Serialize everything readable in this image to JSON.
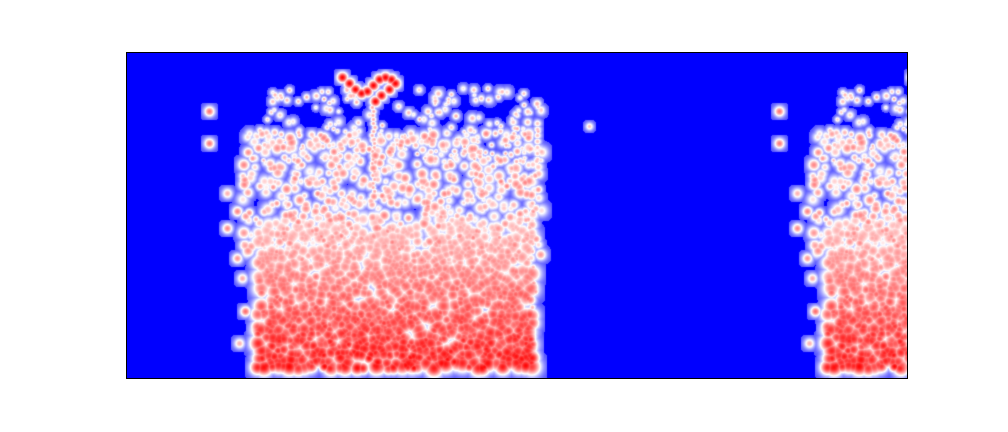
{
  "chart_data": {
    "type": "heatmap",
    "title": "",
    "xlabel": "",
    "ylabel": "",
    "grid": false,
    "axes_ticks_visible": false,
    "colormap": "bwr",
    "colors": {
      "low": "#0000ff",
      "mid": "#ffffff",
      "high": "#ff0000",
      "frame": "#000000",
      "background": "#ffffff"
    },
    "pattern": {
      "repeats": 2,
      "visible_fraction_of_second_repeat": 0.27,
      "description_values": {
        "dense_region_x": [
          0.17,
          0.74
        ],
        "dense_region_intensity": 0.85,
        "sparse_upper_intensity": 0.45,
        "gap_region_x": [
          0.74,
          1.0
        ],
        "isolated_point": {
          "x": 0.81,
          "y": 0.78,
          "intensity": 0.5
        },
        "hook_feature": {
          "x": 0.34,
          "y": 0.9,
          "intensity": 1.0
        }
      }
    }
  }
}
